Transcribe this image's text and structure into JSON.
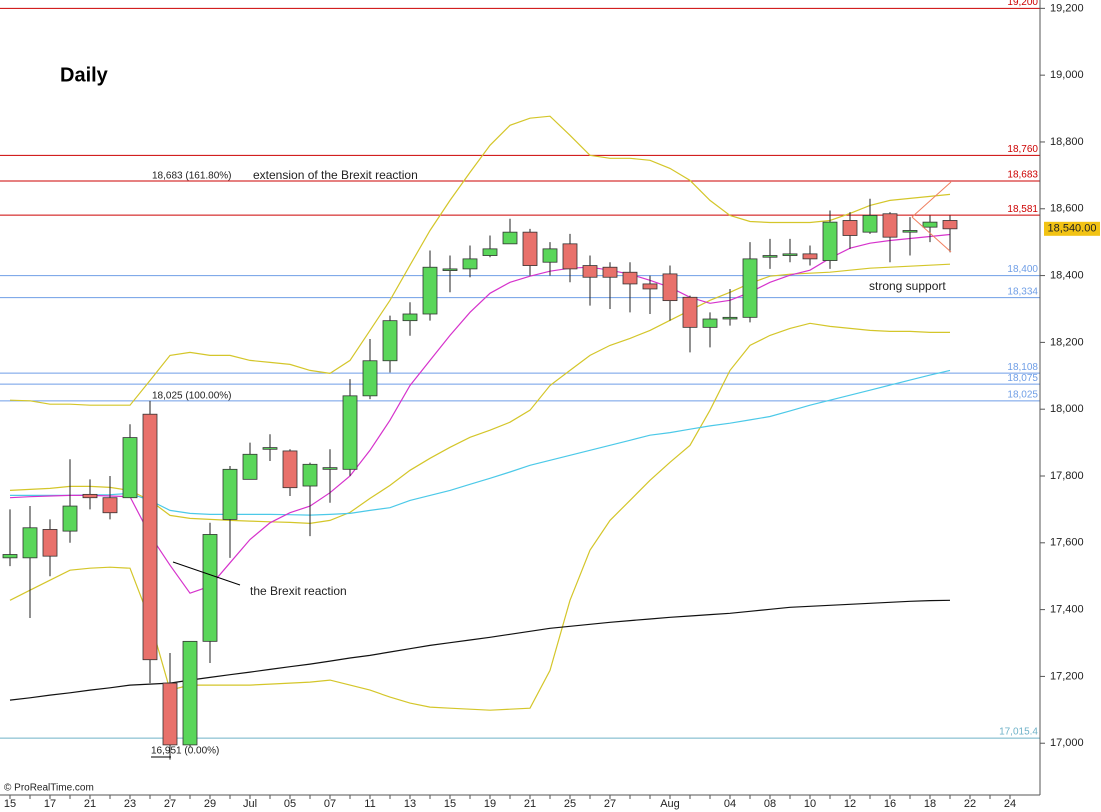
{
  "chart_data": {
    "type": "candlestick",
    "title": "Daily",
    "credit": "© ProRealTime.com",
    "categories": [
      "15",
      null,
      "17",
      null,
      "21",
      null,
      "23",
      null,
      "27",
      null,
      "29",
      null,
      "Jul",
      null,
      "05",
      null,
      "07",
      null,
      "11",
      null,
      "13",
      null,
      "15",
      null,
      "19",
      null,
      "21",
      null,
      "25",
      null,
      "27",
      null,
      null,
      "Aug",
      null,
      null,
      "04",
      null,
      "08",
      null,
      "10",
      null,
      "12",
      null,
      "16",
      null,
      "18",
      null,
      "22",
      null,
      "24"
    ],
    "open": [
      17555,
      17555,
      17640,
      17635,
      17745,
      17735,
      17735,
      17985,
      17180,
      16995,
      17305,
      17670,
      17790,
      17880,
      17875,
      17770,
      17820,
      17820,
      18040,
      18145,
      18265,
      18285,
      18415,
      18420,
      18460,
      18495,
      18530,
      18440,
      18495,
      18430,
      18425,
      18410,
      18375,
      18405,
      18335,
      18245,
      18270,
      18275,
      18455,
      18460,
      18465,
      18445,
      18565,
      18530,
      18585,
      18530,
      18545,
      18565,
      null,
      null,
      null
    ],
    "high": [
      17700,
      17710,
      17670,
      17850,
      17790,
      17800,
      17955,
      18025,
      17270,
      17305,
      17660,
      17830,
      17900,
      17925,
      17880,
      17840,
      17880,
      18090,
      18210,
      18280,
      18320,
      18475,
      18460,
      18490,
      18520,
      18570,
      18540,
      18500,
      18525,
      18460,
      18440,
      18440,
      18400,
      18430,
      18340,
      18290,
      18360,
      18500,
      18510,
      18510,
      18490,
      18595,
      18590,
      18630,
      18590,
      18575,
      18580,
      18580,
      null,
      null,
      null
    ],
    "low": [
      17530,
      17375,
      17500,
      17600,
      17700,
      17670,
      17735,
      17180,
      16951,
      16990,
      17240,
      17555,
      17790,
      17845,
      17740,
      17620,
      17720,
      17800,
      18030,
      18110,
      18220,
      18265,
      18350,
      18395,
      18455,
      18495,
      18400,
      18400,
      18380,
      18310,
      18300,
      18290,
      18285,
      18265,
      18170,
      18185,
      18250,
      18260,
      18420,
      18440,
      18430,
      18420,
      18480,
      18525,
      18440,
      18460,
      18500,
      18470,
      null,
      null,
      null
    ],
    "close": [
      17565,
      17645,
      17560,
      17710,
      17735,
      17690,
      17915,
      17250,
      16995,
      17305,
      17625,
      17820,
      17865,
      17885,
      17765,
      17835,
      17825,
      18040,
      18145,
      18265,
      18285,
      18425,
      18420,
      18450,
      18480,
      18530,
      18430,
      18480,
      18420,
      18395,
      18395,
      18375,
      18360,
      18325,
      18245,
      18270,
      18275,
      18450,
      18460,
      18465,
      18450,
      18560,
      18520,
      18580,
      18515,
      18535,
      18560,
      18540,
      null,
      null,
      null
    ],
    "up_color": "#5ad65a",
    "down_color": "#e8716b",
    "lines": [
      {
        "color": "#d4c62a",
        "values": [
          18027,
          18025,
          18015,
          18015,
          18012,
          18012,
          18012,
          18086,
          18161,
          18170,
          18161,
          18161,
          18146,
          18140,
          18134,
          18116,
          18107,
          18146,
          18236,
          18326,
          18431,
          18535,
          18625,
          18709,
          18790,
          18850,
          18871,
          18877,
          18820,
          18760,
          18751,
          18751,
          18745,
          18721,
          18685,
          18625,
          18580,
          18562,
          18559,
          18559,
          18559,
          18565,
          18586,
          18610,
          18625,
          18631,
          18637,
          18643,
          null,
          null,
          null
        ]
      },
      {
        "color": "#d4c62a",
        "values": [
          17757,
          17760,
          17763,
          17769,
          17769,
          17766,
          17757,
          17727,
          17682,
          17673,
          17670,
          17667,
          17665,
          17663,
          17661,
          17658,
          17667,
          17691,
          17733,
          17772,
          17817,
          17853,
          17886,
          17916,
          17937,
          17961,
          17997,
          18071,
          18116,
          18161,
          18191,
          18212,
          18236,
          18266,
          18296,
          18326,
          18350,
          18377,
          18398,
          18404,
          18407,
          18410,
          18416,
          18422,
          18425,
          18428,
          18431,
          18434,
          null,
          null,
          null
        ]
      },
      {
        "color": "#d4c62a",
        "values": [
          17428,
          17458,
          17488,
          17518,
          17524,
          17527,
          17524,
          17368,
          17159,
          17174,
          17174,
          17174,
          17174,
          17177,
          17180,
          17183,
          17189,
          17174,
          17159,
          17138,
          17120,
          17108,
          17105,
          17102,
          17099,
          17102,
          17105,
          17218,
          17428,
          17578,
          17667,
          17727,
          17787,
          17841,
          17892,
          17997,
          18116,
          18191,
          18221,
          18242,
          18257,
          18248,
          18242,
          18236,
          18233,
          18233,
          18230,
          18230,
          null,
          null,
          null
        ]
      },
      {
        "color": "#4cc9e8",
        "values": [
          17742,
          17742,
          17742,
          17742,
          17743,
          17744,
          17748,
          17727,
          17697,
          17688,
          17685,
          17685,
          17685,
          17685,
          17684,
          17683,
          17685,
          17688,
          17697,
          17705,
          17727,
          17742,
          17757,
          17775,
          17793,
          17812,
          17832,
          17847,
          17862,
          17877,
          17892,
          17907,
          17922,
          17930,
          17940,
          17950,
          17958,
          17968,
          17978,
          17995,
          18012,
          18027,
          18042,
          18057,
          18072,
          18087,
          18102,
          18116,
          null,
          null,
          null
        ]
      },
      {
        "color": "#111111",
        "values": [
          17129,
          17136,
          17144,
          17151,
          17159,
          17166,
          17174,
          17177,
          17180,
          17189,
          17197,
          17205,
          17213,
          17221,
          17229,
          17237,
          17246,
          17255,
          17263,
          17273,
          17283,
          17293,
          17301,
          17309,
          17317,
          17326,
          17335,
          17344,
          17350,
          17356,
          17362,
          17367,
          17372,
          17377,
          17381,
          17385,
          17389,
          17395,
          17401,
          17407,
          17410,
          17413,
          17416,
          17419,
          17422,
          17425,
          17427,
          17428,
          null,
          null,
          null
        ]
      },
      {
        "color": "#d633cc",
        "values": [
          17735,
          17738,
          17740,
          17742,
          17742,
          17740,
          17738,
          17623,
          17533,
          17449,
          17470,
          17540,
          17610,
          17660,
          17690,
          17710,
          17750,
          17800,
          17877,
          17967,
          18071,
          18146,
          18221,
          18290,
          18347,
          18380,
          18398,
          18413,
          18422,
          18425,
          18416,
          18404,
          18386,
          18365,
          18335,
          18317,
          18326,
          18350,
          18380,
          18401,
          18416,
          18452,
          18482,
          18497,
          18505,
          18511,
          18517,
          18523,
          null,
          null,
          null
        ]
      }
    ],
    "levels": [
      {
        "value": 19200,
        "label": "19,200",
        "color": "#cc0000"
      },
      {
        "value": 18760,
        "label": "18,760",
        "color": "#cc0000"
      },
      {
        "value": 18683,
        "label": "18,683",
        "color": "#cc0000"
      },
      {
        "value": 18581,
        "label": "18,581",
        "color": "#cc0000"
      },
      {
        "value": 18400,
        "label": "18,400",
        "color": "#6f9ee6"
      },
      {
        "value": 18334,
        "label": "18,334",
        "color": "#6f9ee6"
      },
      {
        "value": 18108,
        "label": "18,108",
        "color": "#6f9ee6"
      },
      {
        "value": 18075,
        "label": "18,075",
        "color": "#6f9ee6"
      },
      {
        "value": 18025,
        "label": "18,025",
        "color": "#6f9ee6"
      },
      {
        "value": 17015.4,
        "label": "17,015.4",
        "color": "#6fb2c8"
      }
    ],
    "last_price": {
      "value": 18540,
      "label": "18,540.00"
    },
    "annotations": [
      "18,683 (161.80%)",
      "extension of the Brexit reaction",
      "strong support",
      "18,025 (100.00%)",
      "16,951 (0.00%)",
      "the Brexit reaction"
    ],
    "ylim": [
      16845,
      19225
    ],
    "yticks": [
      {
        "value": 17000,
        "label": "17,000"
      },
      {
        "value": 17200,
        "label": "17,200"
      },
      {
        "value": 17400,
        "label": "17,400"
      },
      {
        "value": 17600,
        "label": "17,600"
      },
      {
        "value": 17800,
        "label": "17,800"
      },
      {
        "value": 18000,
        "label": "18,000"
      },
      {
        "value": 18200,
        "label": "18,200"
      },
      {
        "value": 18400,
        "label": "18,400"
      },
      {
        "value": 18600,
        "label": "18,600"
      },
      {
        "value": 18800,
        "label": "18,800"
      },
      {
        "value": 19000,
        "label": "19,000"
      },
      {
        "value": 19200,
        "label": "19,200"
      }
    ]
  }
}
